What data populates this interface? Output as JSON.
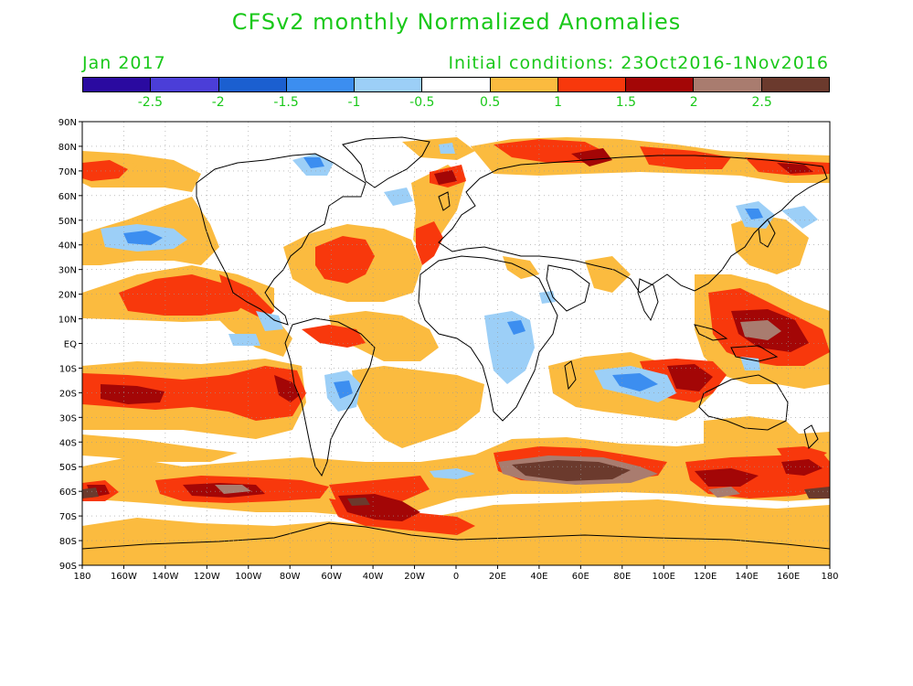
{
  "title": "CFSv2 monthly Normalized Anomalies",
  "valid_month": "Jan 2017",
  "initial_conditions": "Initial conditions: 23Oct2016-1Nov2016",
  "colorbar": {
    "colors": [
      "#2a0aa0",
      "#4b3ed8",
      "#1b5fd0",
      "#3c8ef0",
      "#9ccff7",
      "#ffffff",
      "#fbbb3f",
      "#f8380c",
      "#a30606",
      "#a97c6f",
      "#6b3a2d"
    ],
    "labels": [
      "-2.5",
      "-2",
      "-1.5",
      "-1",
      "-0.5",
      "0.5",
      "1",
      "1.5",
      "2",
      "2.5"
    ]
  },
  "axes": {
    "lat_labels": [
      "90N",
      "80N",
      "70N",
      "60N",
      "50N",
      "40N",
      "30N",
      "20N",
      "10N",
      "EQ",
      "10S",
      "20S",
      "30S",
      "40S",
      "50S",
      "60S",
      "70S",
      "80S",
      "90S"
    ],
    "lon_labels": [
      "180",
      "160W",
      "140W",
      "120W",
      "100W",
      "80W",
      "60W",
      "40W",
      "20W",
      "0",
      "20E",
      "40E",
      "60E",
      "80E",
      "100E",
      "120E",
      "140E",
      "160E",
      "180"
    ]
  },
  "icons": {
    "coastlines": "coastline-outlines"
  }
}
